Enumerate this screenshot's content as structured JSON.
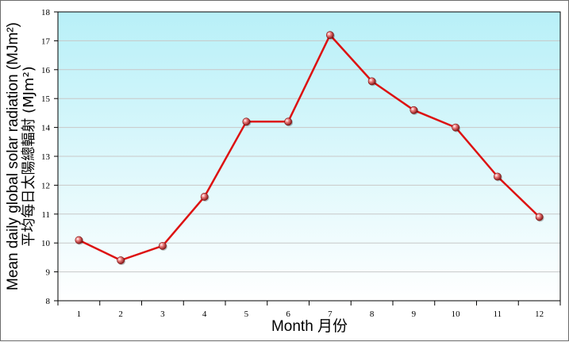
{
  "chart_data": {
    "type": "line",
    "x": [
      1,
      2,
      3,
      4,
      5,
      6,
      7,
      8,
      9,
      10,
      11,
      12
    ],
    "series": [
      {
        "values": [
          10.1,
          9.4,
          9.9,
          11.6,
          14.2,
          14.2,
          17.2,
          15.6,
          14.6,
          14.0,
          12.3,
          10.9
        ]
      }
    ],
    "xlabel": "Month 月份",
    "ylabel": "Mean daily global solar radiation (MJm²)",
    "ylabel_secondary": "平均每日太陽總輻射 (MJm²)",
    "xlim": [
      0.5,
      12.5
    ],
    "ylim": [
      8,
      18
    ],
    "yticks": [
      8,
      9,
      10,
      11,
      12,
      13,
      14,
      15,
      16,
      17,
      18
    ],
    "xticks": [
      "1",
      "2",
      "3",
      "4",
      "5",
      "6",
      "7",
      "8",
      "9",
      "10",
      "11",
      "12"
    ],
    "grid": true,
    "colors": {
      "line": "#dd1111",
      "marker": "#cc3333",
      "plot_top": "#b8f0f8",
      "plot_bottom": "#ffffff",
      "grid": "#c8c8c8"
    }
  }
}
